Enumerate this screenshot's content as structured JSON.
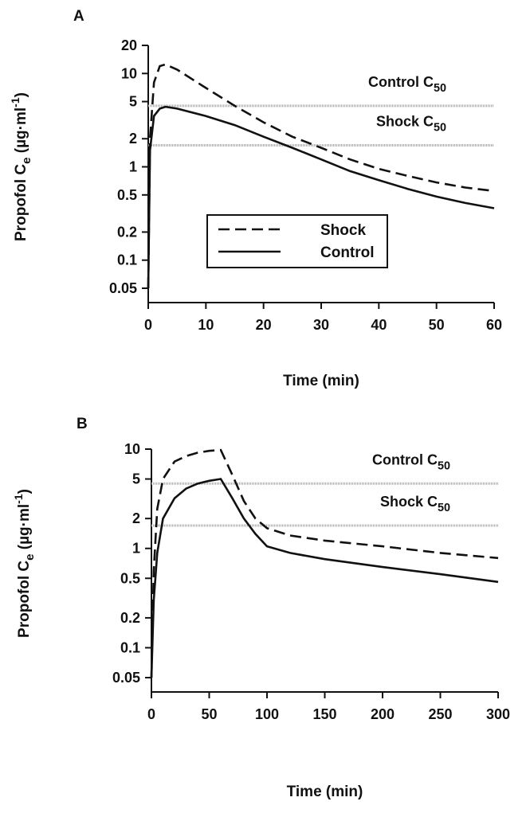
{
  "chart_data": [
    {
      "type": "line",
      "panel": "A",
      "xlabel": "Time (min)",
      "ylabel": [
        {
          "text": "Propofol C"
        },
        {
          "text": "e",
          "shift": "sub"
        },
        {
          "text": " (µg·ml"
        },
        {
          "text": "-1",
          "shift": "super"
        },
        {
          "text": ")"
        }
      ],
      "xlim": [
        0,
        60
      ],
      "xticks": [
        0,
        10,
        20,
        30,
        40,
        50,
        60
      ],
      "ylim": [
        0.05,
        20
      ],
      "yticks": [
        0.05,
        0.1,
        0.2,
        0.5,
        1,
        2,
        5,
        10,
        20
      ],
      "yscale": "log",
      "legend": "lower center",
      "reference_lines": [
        {
          "value": 4.5,
          "label": "Control C",
          "label_sub": "50",
          "color": "#a8a8a8"
        },
        {
          "value": 1.7,
          "label": "Shock C",
          "label_sub": "50",
          "color": "#a8a8a8"
        }
      ],
      "series": [
        {
          "name": "Shock",
          "color": "#111111",
          "style": "dashed",
          "x": [
            0,
            0.3,
            1,
            2,
            3,
            5,
            10,
            15,
            20,
            25,
            30,
            35,
            40,
            45,
            50,
            55,
            60
          ],
          "values": [
            0.05,
            2,
            8,
            12,
            12.5,
            11,
            7,
            4.5,
            3,
            2.1,
            1.6,
            1.2,
            0.95,
            0.8,
            0.68,
            0.6,
            0.55
          ]
        },
        {
          "name": "Control",
          "color": "#111111",
          "style": "solid",
          "x": [
            0,
            0.3,
            1,
            2,
            3,
            5,
            10,
            15,
            20,
            25,
            30,
            35,
            40,
            45,
            50,
            55,
            60
          ],
          "values": [
            0.05,
            1.5,
            3.5,
            4.2,
            4.4,
            4.2,
            3.5,
            2.8,
            2.1,
            1.6,
            1.2,
            0.9,
            0.72,
            0.58,
            0.48,
            0.41,
            0.36
          ]
        }
      ]
    },
    {
      "type": "line",
      "panel": "B",
      "xlabel": "Time (min)",
      "ylabel": [
        {
          "text": "Propofol C"
        },
        {
          "text": "e",
          "shift": "sub"
        },
        {
          "text": " (µg·ml"
        },
        {
          "text": "-1",
          "shift": "super"
        },
        {
          "text": ")"
        }
      ],
      "xlim": [
        0,
        300
      ],
      "xticks": [
        0,
        50,
        100,
        150,
        200,
        250,
        300
      ],
      "ylim": [
        0.05,
        10
      ],
      "yticks": [
        0.05,
        0.1,
        0.2,
        0.5,
        1,
        2,
        5,
        10
      ],
      "yscale": "log",
      "reference_lines": [
        {
          "value": 4.5,
          "label": "Control C",
          "label_sub": "50",
          "color": "#a8a8a8"
        },
        {
          "value": 1.7,
          "label": "Shock C",
          "label_sub": "50",
          "color": "#a8a8a8"
        }
      ],
      "series": [
        {
          "name": "Shock",
          "color": "#111111",
          "style": "dashed",
          "x": [
            0,
            2,
            5,
            10,
            20,
            30,
            40,
            50,
            60,
            70,
            80,
            90,
            100,
            120,
            150,
            200,
            250,
            300
          ],
          "values": [
            0.05,
            0.6,
            2.5,
            5,
            7.5,
            8.5,
            9.2,
            9.6,
            9.8,
            5.5,
            3,
            2,
            1.6,
            1.35,
            1.2,
            1.05,
            0.9,
            0.8
          ]
        },
        {
          "name": "Control",
          "color": "#111111",
          "style": "solid",
          "x": [
            0,
            2,
            5,
            10,
            20,
            30,
            40,
            50,
            60,
            70,
            80,
            90,
            100,
            120,
            150,
            200,
            250,
            300
          ],
          "values": [
            0.05,
            0.3,
            0.9,
            2,
            3.2,
            4,
            4.5,
            4.8,
            5,
            3.2,
            2,
            1.4,
            1.05,
            0.9,
            0.78,
            0.65,
            0.55,
            0.46
          ]
        }
      ]
    }
  ]
}
